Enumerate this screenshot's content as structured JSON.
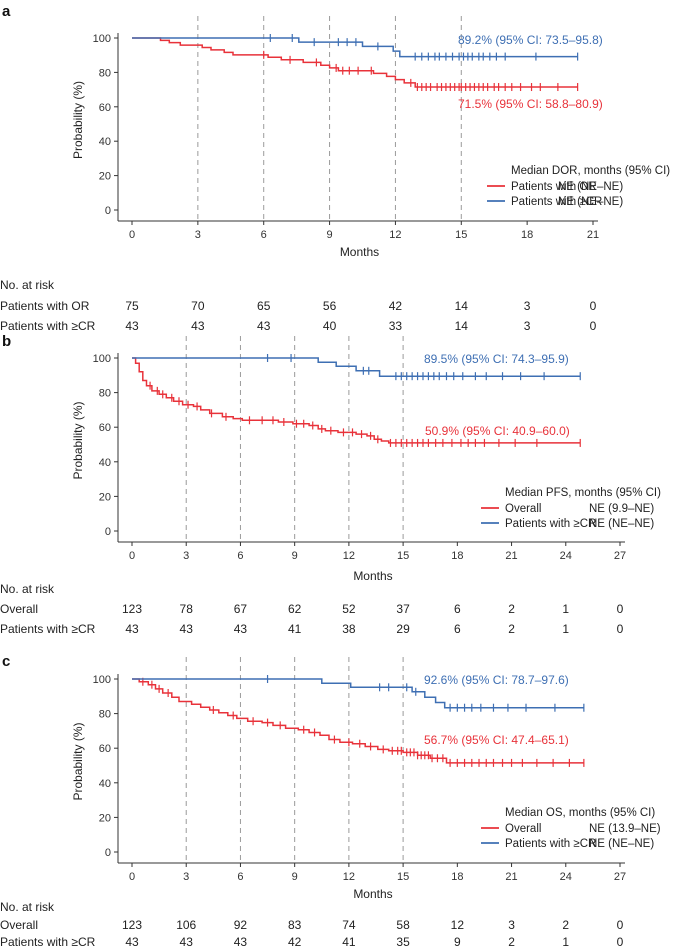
{
  "colors": {
    "red": "#e8323a",
    "blue": "#3e6fb3",
    "grid": "#9a9a9a",
    "axis": "#333333"
  },
  "chart_data": [
    {
      "panel": "a",
      "type": "line",
      "ylabel": "Probability (%)",
      "xlabel": "Months",
      "xlim": [
        0,
        21
      ],
      "xticks": [
        0,
        3,
        6,
        9,
        12,
        15,
        18,
        21
      ],
      "ylim": [
        0,
        100
      ],
      "yticks": [
        0,
        20,
        40,
        60,
        80,
        100
      ],
      "gridlines_x": [
        3,
        6,
        9,
        12,
        15
      ],
      "legend_title": "Median DOR, months (95% CI)",
      "series": [
        {
          "name": "Patients with OR",
          "color": "red",
          "median": "NE (NE–NE)",
          "annotation": "71.5% (95% CI: 58.8–80.9)",
          "steps": [
            [
              0,
              100
            ],
            [
              1.3,
              98.6
            ],
            [
              1.7,
              97.3
            ],
            [
              2.2,
              95.9
            ],
            [
              3.2,
              94.5
            ],
            [
              3.6,
              93.1
            ],
            [
              4.2,
              91.6
            ],
            [
              4.6,
              90.2
            ],
            [
              6.2,
              88.8
            ],
            [
              6.8,
              87.3
            ],
            [
              7.8,
              85.8
            ],
            [
              8.6,
              84.2
            ],
            [
              9.0,
              82.6
            ],
            [
              9.4,
              81.0
            ],
            [
              11.0,
              79.4
            ],
            [
              11.6,
              77.7
            ],
            [
              12.0,
              75.8
            ],
            [
              12.4,
              73.9
            ],
            [
              12.9,
              71.5
            ],
            [
              20.3,
              71.5
            ]
          ],
          "censors": [
            6.0,
            7.2,
            8.4,
            9.3,
            9.6,
            9.9,
            10.3,
            10.9,
            12.7,
            13.0,
            13.2,
            13.4,
            13.6,
            13.9,
            14.1,
            14.3,
            14.5,
            14.7,
            14.9,
            15.0,
            15.2,
            15.4,
            15.6,
            15.8,
            16.0,
            16.2,
            16.5,
            16.7,
            17.0,
            17.3,
            17.7,
            18.2,
            18.6,
            19.4,
            20.3
          ]
        },
        {
          "name": "Patients with ≥CR",
          "color": "blue",
          "median": "NE (NE–NE)",
          "annotation": "89.2% (95% CI: 73.5–95.8)",
          "steps": [
            [
              0,
              100
            ],
            [
              7.6,
              97.6
            ],
            [
              10.5,
              95.1
            ],
            [
              11.9,
              92.4
            ],
            [
              12.2,
              89.2
            ],
            [
              20.3,
              89.2
            ]
          ],
          "censors": [
            6.3,
            7.3,
            8.3,
            9.4,
            9.8,
            10.2,
            11.2,
            12.9,
            13.2,
            13.5,
            13.8,
            14.0,
            14.3,
            14.6,
            14.9,
            15.1,
            15.3,
            15.5,
            15.8,
            16.0,
            16.3,
            16.6,
            17.0,
            18.4,
            20.3
          ]
        }
      ],
      "risk_label": "No. at risk",
      "risk_times": [
        0,
        3,
        6,
        9,
        12,
        15,
        18,
        21
      ],
      "risk_rows": [
        {
          "label": "Patients with OR",
          "values": [
            "75",
            "70",
            "65",
            "56",
            "42",
            "14",
            "3",
            "0"
          ]
        },
        {
          "label": "Patients with ≥CR",
          "values": [
            "43",
            "43",
            "43",
            "40",
            "33",
            "14",
            "3",
            "0"
          ]
        }
      ]
    },
    {
      "panel": "b",
      "type": "line",
      "ylabel": "Probability (%)",
      "xlabel": "Months",
      "xlim": [
        0,
        27
      ],
      "xticks": [
        0,
        3,
        6,
        9,
        12,
        15,
        18,
        21,
        24,
        27
      ],
      "ylim": [
        0,
        100
      ],
      "yticks": [
        0,
        20,
        40,
        60,
        80,
        100
      ],
      "gridlines_x": [
        3,
        6,
        9,
        12,
        15
      ],
      "legend_title": "Median PFS, months (95% CI)",
      "series": [
        {
          "name": "Overall",
          "color": "red",
          "median": "NE (9.9–NE)",
          "annotation": "50.9% (95% CI: 40.9–60.0)",
          "steps": [
            [
              0,
              100
            ],
            [
              0.2,
              97
            ],
            [
              0.4,
              92
            ],
            [
              0.6,
              87
            ],
            [
              0.8,
              84
            ],
            [
              1.1,
              81
            ],
            [
              1.5,
              79
            ],
            [
              1.9,
              77
            ],
            [
              2.3,
              75
            ],
            [
              2.8,
              73
            ],
            [
              3.4,
              72
            ],
            [
              3.8,
              70
            ],
            [
              4.3,
              68
            ],
            [
              5.0,
              66
            ],
            [
              5.6,
              65
            ],
            [
              6.1,
              64
            ],
            [
              8.1,
              63
            ],
            [
              8.9,
              62
            ],
            [
              9.8,
              61
            ],
            [
              10.3,
              59
            ],
            [
              10.7,
              58
            ],
            [
              11.4,
              57
            ],
            [
              12.4,
              56
            ],
            [
              13.0,
              55
            ],
            [
              13.4,
              53
            ],
            [
              13.8,
              52
            ],
            [
              14.2,
              50.9
            ],
            [
              24.8,
              50.9
            ]
          ],
          "censors": [
            1.0,
            1.4,
            1.7,
            2.2,
            2.6,
            3.1,
            3.6,
            4.4,
            5.2,
            6.5,
            7.2,
            7.8,
            8.4,
            9.1,
            9.5,
            10.0,
            10.5,
            11.0,
            11.7,
            12.2,
            12.7,
            13.2,
            13.6,
            14.3,
            14.6,
            14.9,
            15.2,
            15.5,
            15.8,
            16.1,
            16.4,
            16.8,
            17.2,
            17.7,
            18.2,
            18.6,
            19.0,
            19.5,
            20.3,
            21.2,
            22.4,
            24.8
          ]
        },
        {
          "name": "Patients with ≥CR",
          "color": "blue",
          "median": "NE (NE–NE)",
          "annotation": "89.5% (95% CI: 74.3–95.9)",
          "steps": [
            [
              0,
              100
            ],
            [
              10.3,
              97.6
            ],
            [
              11.3,
              95.2
            ],
            [
              12.4,
              92.6
            ],
            [
              13.7,
              89.5
            ],
            [
              24.8,
              89.5
            ]
          ],
          "censors": [
            7.5,
            8.8,
            12.8,
            13.1,
            14.6,
            14.9,
            15.2,
            15.5,
            15.8,
            16.1,
            16.4,
            16.7,
            17.0,
            17.4,
            17.8,
            18.3,
            19.0,
            19.6,
            20.5,
            21.5,
            22.8,
            24.8
          ]
        }
      ],
      "risk_label": "No. at risk",
      "risk_times": [
        0,
        3,
        6,
        9,
        12,
        15,
        18,
        21,
        24,
        27
      ],
      "risk_rows": [
        {
          "label": "Overall",
          "values": [
            "123",
            "78",
            "67",
            "62",
            "52",
            "37",
            "6",
            "2",
            "1",
            "0"
          ]
        },
        {
          "label": "Patients with ≥CR",
          "values": [
            "43",
            "43",
            "43",
            "41",
            "38",
            "29",
            "6",
            "2",
            "1",
            "0"
          ]
        }
      ]
    },
    {
      "panel": "c",
      "type": "line",
      "ylabel": "Probability (%)",
      "xlabel": "Months",
      "xlim": [
        0,
        27
      ],
      "xticks": [
        0,
        3,
        6,
        9,
        12,
        15,
        18,
        21,
        24,
        27
      ],
      "ylim": [
        0,
        100
      ],
      "yticks": [
        0,
        20,
        40,
        60,
        80,
        100
      ],
      "gridlines_x": [
        3,
        6,
        9,
        12,
        15
      ],
      "legend_title": "Median OS, months (95% CI)",
      "series": [
        {
          "name": "Overall",
          "color": "red",
          "median": "NE (13.9–NE)",
          "annotation": "56.7% (95% CI: 47.4–65.1)",
          "steps": [
            [
              0,
              100
            ],
            [
              0.4,
              98.4
            ],
            [
              0.9,
              96.7
            ],
            [
              1.3,
              94.3
            ],
            [
              1.7,
              91.9
            ],
            [
              2.2,
              89.4
            ],
            [
              2.6,
              87.0
            ],
            [
              3.3,
              85.4
            ],
            [
              3.8,
              83.7
            ],
            [
              4.3,
              82.1
            ],
            [
              4.8,
              80.5
            ],
            [
              5.3,
              78.9
            ],
            [
              5.8,
              77.2
            ],
            [
              6.4,
              75.6
            ],
            [
              7.2,
              74.8
            ],
            [
              7.8,
              73.2
            ],
            [
              8.5,
              71.5
            ],
            [
              9.2,
              70.7
            ],
            [
              9.8,
              69.1
            ],
            [
              10.4,
              67.5
            ],
            [
              10.9,
              65.0
            ],
            [
              11.5,
              63.4
            ],
            [
              12.2,
              62.6
            ],
            [
              12.9,
              61.0
            ],
            [
              13.6,
              59.3
            ],
            [
              14.2,
              58.5
            ],
            [
              15.0,
              57.6
            ],
            [
              15.8,
              55.9
            ],
            [
              16.5,
              54.2
            ],
            [
              17.4,
              51.5
            ],
            [
              25.0,
              51.5
            ]
          ],
          "censors": [
            0.6,
            1.1,
            1.5,
            2.0,
            4.5,
            5.6,
            6.7,
            7.5,
            8.2,
            9.5,
            10.1,
            11.2,
            12.0,
            12.6,
            13.2,
            13.9,
            14.4,
            14.7,
            14.9,
            15.2,
            15.4,
            15.6,
            15.8,
            16.0,
            16.2,
            16.4,
            16.6,
            16.9,
            17.2,
            17.6,
            18.0,
            18.4,
            18.8,
            19.2,
            19.6,
            20.0,
            20.5,
            21.0,
            21.6,
            22.4,
            23.3,
            24.2,
            25.0
          ]
        },
        {
          "name": "Patients with ≥CR",
          "color": "blue",
          "median": "NE (NE–NE)",
          "annotation": "92.6% (95% CI: 78.7–97.6)",
          "steps": [
            [
              0,
              100
            ],
            [
              10.5,
              97.6
            ],
            [
              12.1,
              95.2
            ],
            [
              15.5,
              92.6
            ],
            [
              16.2,
              89.4
            ],
            [
              16.8,
              86.4
            ],
            [
              17.3,
              83.4
            ],
            [
              25.0,
              83.4
            ]
          ],
          "censors": [
            7.5,
            13.7,
            14.2,
            15.2,
            15.7,
            17.6,
            18.0,
            18.4,
            18.8,
            19.3,
            20.0,
            20.8,
            21.8,
            23.4,
            25.0
          ]
        }
      ],
      "risk_label": "No. at risk",
      "risk_times": [
        0,
        3,
        6,
        9,
        12,
        15,
        18,
        21,
        24,
        27
      ],
      "risk_rows": [
        {
          "label": "Overall",
          "values": [
            "123",
            "106",
            "92",
            "83",
            "74",
            "58",
            "12",
            "3",
            "2",
            "0"
          ]
        },
        {
          "label": "Patients with ≥CR",
          "values": [
            "43",
            "43",
            "43",
            "42",
            "41",
            "35",
            "9",
            "2",
            "1",
            "0"
          ]
        }
      ]
    }
  ]
}
